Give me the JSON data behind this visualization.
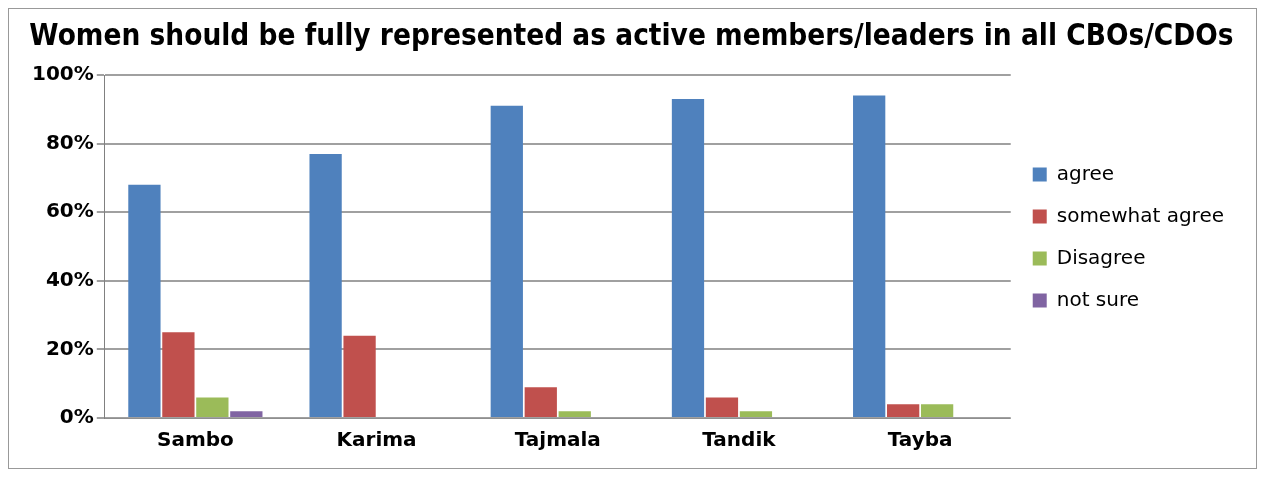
{
  "chart_data": {
    "type": "bar",
    "title": "Women should be fully represented as active members/leaders in all CBOs/CDOs",
    "categories": [
      "Sambo",
      "Karima",
      "Tajmala",
      "Tandik",
      "Tayba"
    ],
    "series": [
      {
        "name": "agree",
        "color": "#4f81bd",
        "values": [
          68,
          77,
          91,
          93,
          94
        ]
      },
      {
        "name": "somewhat agree",
        "color": "#c0504d",
        "values": [
          25,
          24,
          9,
          6,
          4
        ]
      },
      {
        "name": "Disagree",
        "color": "#9bbb59",
        "values": [
          6,
          0,
          2,
          2,
          4
        ]
      },
      {
        "name": "not sure",
        "color": "#8064a2",
        "values": [
          2,
          0,
          0,
          0,
          0
        ]
      }
    ],
    "ylim": [
      0,
      100
    ],
    "yticks": [
      {
        "value": 0,
        "label": "0%"
      },
      {
        "value": 20,
        "label": "20%"
      },
      {
        "value": 40,
        "label": "40%"
      },
      {
        "value": 60,
        "label": "60%"
      },
      {
        "value": 80,
        "label": "80%"
      },
      {
        "value": 100,
        "label": "100%"
      }
    ],
    "grid": "y",
    "legend": "right"
  }
}
